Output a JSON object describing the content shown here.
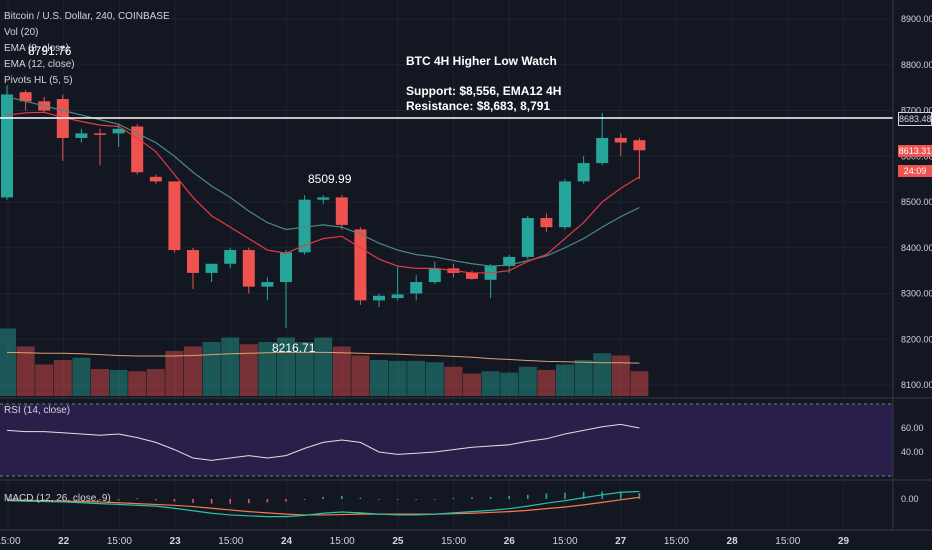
{
  "legend": {
    "symbol": "Bitcoin / U.S. Dollar, 240, COINBASE",
    "vol": "Vol (20)",
    "ema1": "EMA (8, close)",
    "ema2": "EMA (12, close)",
    "pivots": "Pivots HL (5, 5)",
    "rsi": "RSI (14, close)",
    "macd": "MACD (12, 26, close, 9)"
  },
  "annotation": {
    "line1": "BTC 4H Higher Low Watch",
    "line2": "Support: $8,556, EMA12 4H",
    "line3": "Resistance: $8,683, 8,791"
  },
  "pivot_labels": {
    "high1": "8791.76",
    "high2": "8509.99",
    "low1": "8216.71"
  },
  "badges": {
    "resistance": "8683.48",
    "price": "8613.31",
    "countdown": "24:09"
  },
  "colors": {
    "up": "#26a69a",
    "down": "#ef5350",
    "bg": "#131722",
    "rsi_band": "#2a1f4a"
  },
  "chart_data": {
    "type": "candlestick",
    "title": "Bitcoin / U.S. Dollar, 240, COINBASE",
    "price_axis": {
      "ticks": [
        8100,
        8200,
        8300,
        8400,
        8500,
        8600,
        8700,
        8800,
        8900
      ],
      "tick_labels": [
        "8100.00",
        "8200.00",
        "8300.00",
        "8400.00",
        "8500.00",
        "8600.00",
        "8700.00",
        "8800.00",
        "8900.00"
      ],
      "range": [
        8100,
        8900
      ]
    },
    "time_axis": {
      "labels": [
        "15:00",
        "22",
        "15:00",
        "23",
        "15:00",
        "24",
        "15:00",
        "25",
        "15:00",
        "26",
        "15:00",
        "27",
        "15:00",
        "28",
        "15:00",
        "29"
      ]
    },
    "resistance_level": 8683.48,
    "last_price": 8613.31,
    "candles": [
      {
        "o": 8510,
        "h": 8755,
        "l": 8505,
        "c": 8735
      },
      {
        "o": 8740,
        "h": 8745,
        "l": 8700,
        "c": 8720
      },
      {
        "o": 8720,
        "h": 8730,
        "l": 8695,
        "c": 8700
      },
      {
        "o": 8725,
        "h": 8735,
        "l": 8590,
        "c": 8640
      },
      {
        "o": 8640,
        "h": 8660,
        "l": 8630,
        "c": 8650
      },
      {
        "o": 8650,
        "h": 8660,
        "l": 8580,
        "c": 8648
      },
      {
        "o": 8650,
        "h": 8670,
        "l": 8620,
        "c": 8660
      },
      {
        "o": 8665,
        "h": 8670,
        "l": 8560,
        "c": 8565
      },
      {
        "o": 8555,
        "h": 8560,
        "l": 8540,
        "c": 8545
      },
      {
        "o": 8545,
        "h": 8545,
        "l": 8390,
        "c": 8395
      },
      {
        "o": 8395,
        "h": 8400,
        "l": 8310,
        "c": 8345
      },
      {
        "o": 8345,
        "h": 8360,
        "l": 8325,
        "c": 8365
      },
      {
        "o": 8365,
        "h": 8400,
        "l": 8355,
        "c": 8395
      },
      {
        "o": 8395,
        "h": 8400,
        "l": 8300,
        "c": 8315
      },
      {
        "o": 8315,
        "h": 8335,
        "l": 8285,
        "c": 8325
      },
      {
        "o": 8325,
        "h": 8395,
        "l": 8225,
        "c": 8390
      },
      {
        "o": 8390,
        "h": 8515,
        "l": 8385,
        "c": 8505
      },
      {
        "o": 8505,
        "h": 8515,
        "l": 8495,
        "c": 8510
      },
      {
        "o": 8510,
        "h": 8515,
        "l": 8440,
        "c": 8450
      },
      {
        "o": 8440,
        "h": 8445,
        "l": 8275,
        "c": 8285
      },
      {
        "o": 8285,
        "h": 8300,
        "l": 8270,
        "c": 8295
      },
      {
        "o": 8290,
        "h": 8360,
        "l": 8285,
        "c": 8298
      },
      {
        "o": 8300,
        "h": 8340,
        "l": 8285,
        "c": 8325
      },
      {
        "o": 8325,
        "h": 8370,
        "l": 8320,
        "c": 8355
      },
      {
        "o": 8355,
        "h": 8365,
        "l": 8335,
        "c": 8345
      },
      {
        "o": 8345,
        "h": 8350,
        "l": 8330,
        "c": 8332
      },
      {
        "o": 8330,
        "h": 8365,
        "l": 8290,
        "c": 8360
      },
      {
        "o": 8360,
        "h": 8385,
        "l": 8345,
        "c": 8380
      },
      {
        "o": 8380,
        "h": 8470,
        "l": 8375,
        "c": 8465
      },
      {
        "o": 8465,
        "h": 8475,
        "l": 8435,
        "c": 8445
      },
      {
        "o": 8445,
        "h": 8550,
        "l": 8440,
        "c": 8545
      },
      {
        "o": 8545,
        "h": 8600,
        "l": 8540,
        "c": 8585
      },
      {
        "o": 8585,
        "h": 8695,
        "l": 8580,
        "c": 8640
      },
      {
        "o": 8640,
        "h": 8650,
        "l": 8600,
        "c": 8630
      },
      {
        "o": 8635,
        "h": 8640,
        "l": 8550,
        "c": 8613
      }
    ],
    "ema_slow": [
      8730,
      8720,
      8710,
      8700,
      8690,
      8680,
      8670,
      8650,
      8630,
      8600,
      8565,
      8535,
      8510,
      8480,
      8455,
      8440,
      8445,
      8450,
      8445,
      8430,
      8410,
      8395,
      8385,
      8380,
      8372,
      8365,
      8360,
      8362,
      8372,
      8382,
      8400,
      8420,
      8445,
      8468,
      8488
    ],
    "ema_fast": [
      8690,
      8695,
      8696,
      8685,
      8676,
      8668,
      8665,
      8640,
      8610,
      8560,
      8510,
      8470,
      8445,
      8420,
      8395,
      8388,
      8405,
      8420,
      8425,
      8400,
      8375,
      8360,
      8355,
      8355,
      8350,
      8345,
      8345,
      8350,
      8370,
      8385,
      8420,
      8455,
      8500,
      8530,
      8555
    ],
    "volume": [
      150,
      110,
      70,
      80,
      85,
      60,
      58,
      55,
      60,
      100,
      110,
      120,
      130,
      115,
      120,
      130,
      120,
      130,
      110,
      90,
      80,
      78,
      78,
      75,
      65,
      50,
      55,
      52,
      65,
      58,
      70,
      80,
      95,
      90,
      55
    ],
    "volume_ma": [
      97,
      96,
      95,
      95,
      94,
      92,
      90,
      89,
      89,
      89,
      90,
      92,
      94,
      95,
      96,
      97,
      97,
      97,
      96,
      95,
      94,
      93,
      91,
      90,
      88,
      86,
      83,
      81,
      79,
      77,
      76,
      75,
      74,
      74,
      73
    ],
    "rsi": {
      "ticks": [
        40,
        60
      ],
      "values": [
        58,
        57,
        57,
        56,
        55,
        54,
        55,
        52,
        48,
        42,
        35,
        33,
        35,
        37,
        35,
        37,
        43,
        48,
        50,
        48,
        40,
        38,
        39,
        40,
        42,
        44,
        45,
        46,
        49,
        51,
        55,
        58,
        61,
        63,
        60
      ]
    },
    "macd": {
      "ticks": [
        0
      ],
      "tick_labels": [
        "0.00"
      ],
      "macd": [
        -4,
        -5,
        -6,
        -7,
        -9,
        -11,
        -13,
        -15,
        -17,
        -22,
        -28,
        -34,
        -38,
        -40,
        -42,
        -42,
        -39,
        -34,
        -31,
        -33,
        -36,
        -38,
        -38,
        -36,
        -33,
        -30,
        -27,
        -23,
        -17,
        -10,
        -4,
        3,
        10,
        16,
        18
      ],
      "signal": [
        -2,
        -3,
        -4,
        -5,
        -6,
        -7,
        -9,
        -11,
        -13,
        -15,
        -18,
        -22,
        -26,
        -30,
        -33,
        -36,
        -38,
        -38,
        -37,
        -36,
        -36,
        -36,
        -36,
        -36,
        -35,
        -34,
        -32,
        -30,
        -27,
        -23,
        -19,
        -14,
        -8,
        -2,
        4
      ],
      "hist": [
        2,
        2,
        -2,
        -2,
        3,
        -3,
        -3,
        2,
        -3,
        -6,
        -9,
        -11,
        -11,
        -10,
        -8,
        -6,
        -2,
        5,
        7,
        3,
        -1,
        -2,
        -2,
        0,
        2,
        4,
        5,
        7,
        10,
        13,
        15,
        17,
        18,
        17,
        14
      ]
    }
  }
}
